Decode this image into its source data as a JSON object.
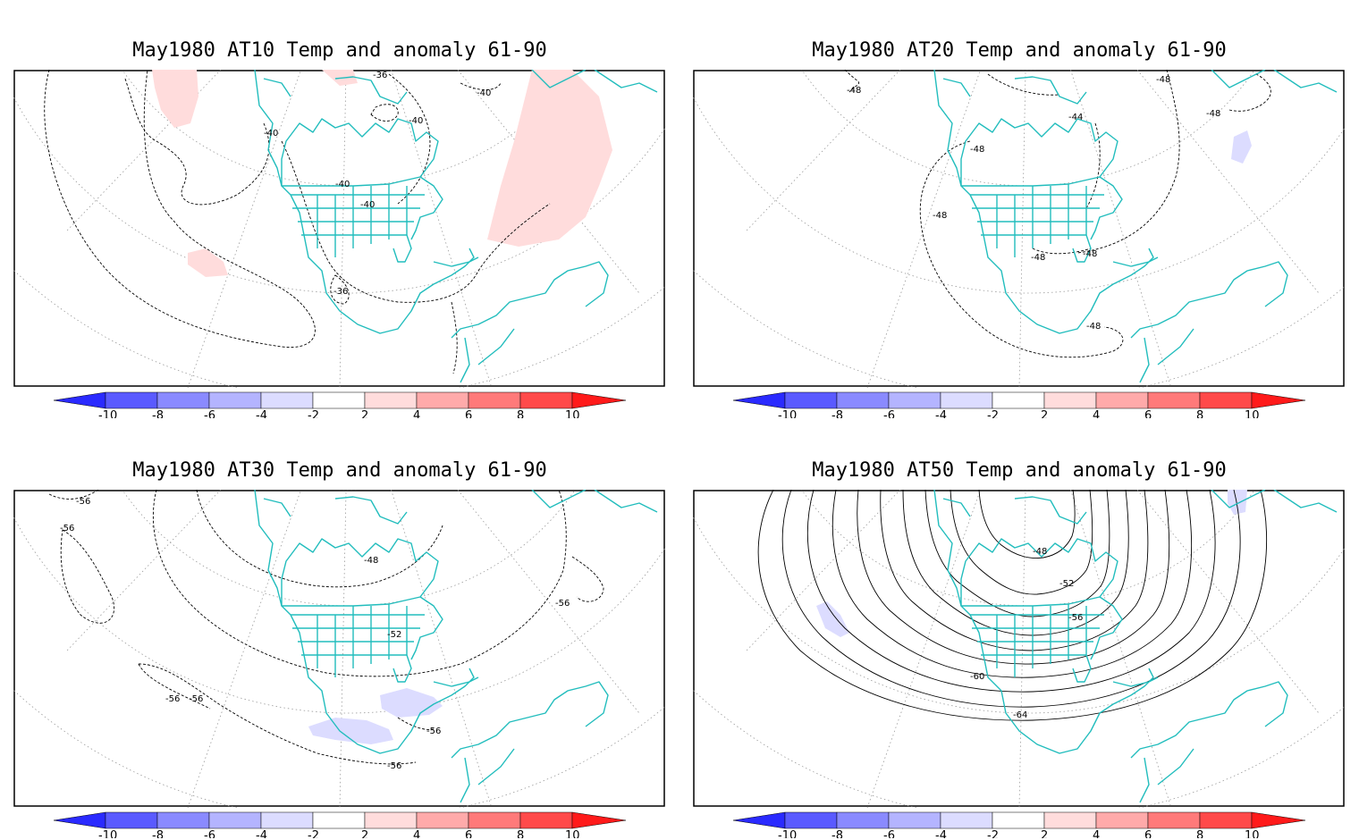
{
  "colors": {
    "coast": "#22bdbd",
    "contour": "#000000",
    "graticule": "#9a9a9a",
    "neg": [
      "#2a2aff",
      "#5a5aff",
      "#8a8aff",
      "#b4b4ff",
      "#dcdcff"
    ],
    "pos": [
      "#ffdcdc",
      "#ffaaaa",
      "#ff7a7a",
      "#ff4a4a",
      "#ff1a1a"
    ]
  },
  "colorbar": {
    "labels": [
      "-10",
      "-8",
      "-6",
      "-4",
      "-2",
      "2",
      "4",
      "6",
      "8",
      "10"
    ]
  },
  "panels": [
    {
      "title": "May1980 AT10 Temp and anomaly 61-90",
      "contour_labels": [
        "-36",
        "-40",
        "-40",
        "-40",
        "-40",
        "-40",
        "-36"
      ]
    },
    {
      "title": "May1980 AT20 Temp and anomaly 61-90",
      "contour_labels": [
        "-48",
        "-44",
        "-48",
        "-48",
        "-48",
        "-48",
        "-48",
        "-48",
        "-48"
      ]
    },
    {
      "title": "May1980 AT30 Temp and anomaly 61-90",
      "contour_labels": [
        "-56",
        "-56",
        "-48",
        "-52",
        "-56",
        "-56",
        "-56",
        "-56",
        "-56"
      ]
    },
    {
      "title": "May1980 AT50 Temp and anomaly 61-90",
      "contour_labels": [
        "-48",
        "-52",
        "-56",
        "-60",
        "-64"
      ]
    }
  ]
}
